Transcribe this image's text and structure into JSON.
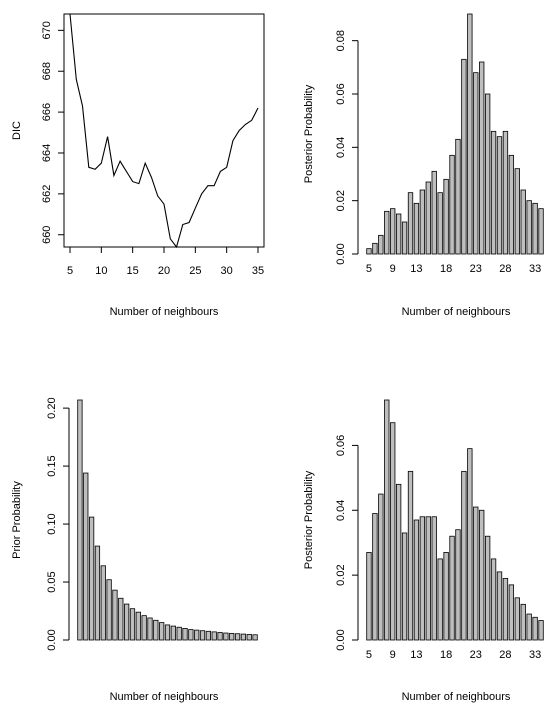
{
  "chart_data": [
    {
      "type": "line",
      "xlabel": "Number of neighbours",
      "ylabel": "DIC",
      "xlim": [
        5,
        35
      ],
      "ylim": [
        659.4,
        670.8
      ],
      "x_ticks": [
        5,
        10,
        15,
        20,
        25,
        30,
        35
      ],
      "y_ticks": [
        660,
        662,
        664,
        666,
        668,
        670
      ],
      "grid": false,
      "x": [
        5,
        6,
        7,
        8,
        9,
        10,
        11,
        12,
        13,
        14,
        15,
        16,
        17,
        18,
        19,
        20,
        21,
        22,
        23,
        24,
        25,
        26,
        27,
        28,
        29,
        30,
        31,
        32,
        33,
        34,
        35
      ],
      "values": [
        670.8,
        667.6,
        666.3,
        663.3,
        663.2,
        663.5,
        664.8,
        662.9,
        663.6,
        663.1,
        662.6,
        662.5,
        663.5,
        662.8,
        661.9,
        661.5,
        659.8,
        659.4,
        660.5,
        660.6,
        661.3,
        662.0,
        662.4,
        662.4,
        663.1,
        663.3,
        664.6,
        665.1,
        665.4,
        665.6,
        666.2
      ]
    },
    {
      "type": "bar",
      "xlabel": "Number of neighbours",
      "ylabel": "Posterior Probability",
      "ylim": [
        0,
        0.09
      ],
      "x_ticks": [
        5,
        9,
        13,
        18,
        23,
        28,
        33
      ],
      "y_ticks": [
        "0.00",
        "0.02",
        "0.04",
        "0.06",
        "0.08"
      ],
      "grid": false,
      "categories": [
        5,
        6,
        7,
        8,
        9,
        10,
        11,
        12,
        13,
        14,
        15,
        16,
        17,
        18,
        19,
        20,
        21,
        22,
        23,
        24,
        25,
        26,
        27,
        28,
        29,
        30,
        31,
        32,
        33,
        34
      ],
      "values": [
        0.002,
        0.004,
        0.007,
        0.016,
        0.017,
        0.015,
        0.012,
        0.023,
        0.019,
        0.024,
        0.027,
        0.031,
        0.023,
        0.028,
        0.037,
        0.043,
        0.073,
        0.09,
        0.068,
        0.072,
        0.06,
        0.046,
        0.044,
        0.046,
        0.037,
        0.032,
        0.024,
        0.02,
        0.019,
        0.017
      ]
    },
    {
      "type": "bar",
      "xlabel": "Number of neighbours",
      "ylabel": "Prior Probability",
      "ylim": [
        0,
        0.207
      ],
      "x_ticks": [],
      "y_ticks": [
        "0.00",
        "0.05",
        "0.10",
        "0.15",
        "0.20"
      ],
      "grid": false,
      "categories": [
        5,
        6,
        7,
        8,
        9,
        10,
        11,
        12,
        13,
        14,
        15,
        16,
        17,
        18,
        19,
        20,
        21,
        22,
        23,
        24,
        25,
        26,
        27,
        28,
        29,
        30,
        31,
        32,
        33,
        34,
        35
      ],
      "values": [
        0.207,
        0.144,
        0.106,
        0.081,
        0.064,
        0.052,
        0.043,
        0.036,
        0.031,
        0.027,
        0.024,
        0.021,
        0.019,
        0.017,
        0.015,
        0.013,
        0.012,
        0.011,
        0.01,
        0.009,
        0.0085,
        0.008,
        0.0075,
        0.007,
        0.0065,
        0.006,
        0.0057,
        0.0054,
        0.0051,
        0.0048,
        0.0045
      ]
    },
    {
      "type": "bar",
      "xlabel": "Number of neighbours",
      "ylabel": "Posterior Probability",
      "ylim": [
        0,
        0.074
      ],
      "x_ticks": [
        5,
        9,
        13,
        18,
        23,
        28,
        33
      ],
      "y_ticks": [
        "0.00",
        "0.02",
        "0.04",
        "0.06"
      ],
      "grid": false,
      "categories": [
        5,
        6,
        7,
        8,
        9,
        10,
        11,
        12,
        13,
        14,
        15,
        16,
        17,
        18,
        19,
        20,
        21,
        22,
        23,
        24,
        25,
        26,
        27,
        28,
        29,
        30,
        31,
        32,
        33,
        34
      ],
      "values": [
        0.027,
        0.039,
        0.045,
        0.074,
        0.067,
        0.048,
        0.033,
        0.052,
        0.037,
        0.038,
        0.038,
        0.038,
        0.025,
        0.027,
        0.032,
        0.034,
        0.052,
        0.059,
        0.041,
        0.04,
        0.032,
        0.025,
        0.021,
        0.019,
        0.017,
        0.013,
        0.011,
        0.008,
        0.007,
        0.006
      ]
    }
  ]
}
